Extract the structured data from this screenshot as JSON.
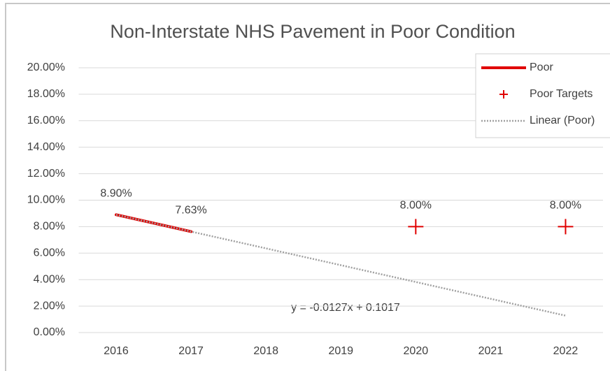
{
  "chart_data": {
    "type": "line",
    "title": "Non-Interstate NHS Pavement in Poor Condition",
    "categories": [
      "2016",
      "2017",
      "2018",
      "2019",
      "2020",
      "2021",
      "2022"
    ],
    "series": [
      {
        "name": "Poor",
        "color": "#e00000",
        "style": "line",
        "values": [
          8.9,
          7.63,
          null,
          null,
          null,
          null,
          null
        ],
        "value_labels": [
          "8.90%",
          "7.63%",
          null,
          null,
          null,
          null,
          null
        ]
      },
      {
        "name": "Poor Targets",
        "color": "#e00000",
        "style": "plus",
        "values": [
          null,
          null,
          null,
          null,
          8.0,
          null,
          8.0
        ],
        "value_labels": [
          null,
          null,
          null,
          null,
          "8.00%",
          null,
          "8.00%"
        ]
      },
      {
        "name": "Linear (Poor)",
        "color": "#a0a0a0",
        "style": "dotted",
        "values": [
          8.9,
          7.63,
          6.36,
          5.09,
          3.82,
          2.55,
          1.28
        ]
      }
    ],
    "annotations": [
      "y = -0.0127x + 0.1017"
    ],
    "ylim": [
      0,
      20
    ],
    "yticks": [
      {
        "value": 0,
        "label": "0.00%"
      },
      {
        "value": 2,
        "label": "2.00%"
      },
      {
        "value": 4,
        "label": "4.00%"
      },
      {
        "value": 6,
        "label": "6.00%"
      },
      {
        "value": 8,
        "label": "8.00%"
      },
      {
        "value": 10,
        "label": "10.00%"
      },
      {
        "value": 12,
        "label": "12.00%"
      },
      {
        "value": 14,
        "label": "14.00%"
      },
      {
        "value": 16,
        "label": "16.00%"
      },
      {
        "value": 18,
        "label": "18.00%"
      },
      {
        "value": 20,
        "label": "20.00%"
      }
    ],
    "grid": true,
    "legend": "top-right"
  }
}
